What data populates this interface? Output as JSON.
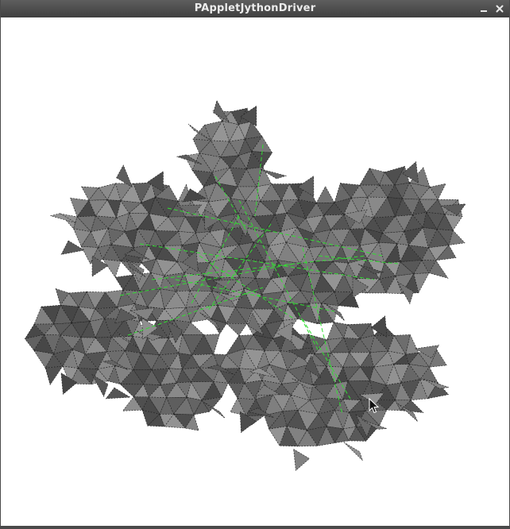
{
  "window": {
    "title": "PAppletJythonDriver",
    "controls": [
      "minimize-icon",
      "close-icon"
    ]
  },
  "scene": {
    "background": "#ffffff",
    "mesh_fill": "#6f6f6f",
    "mesh_edge": "#1f1f1f",
    "wire_color": "#33dd33"
  }
}
